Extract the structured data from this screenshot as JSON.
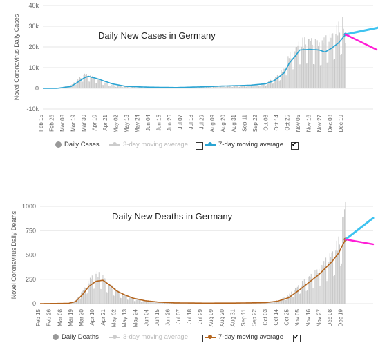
{
  "chart_data": [
    {
      "type": "bar",
      "title": "Daily New Cases in Germany",
      "ylabel": "Novel Coronavirus Daily Cases",
      "ylim": [
        -10000,
        40000
      ],
      "yticks": [
        "-10k",
        "0",
        "10k",
        "20k",
        "30k",
        "40k"
      ],
      "ytick_values": [
        -10000,
        0,
        10000,
        20000,
        30000,
        40000
      ],
      "x_tick_labels": [
        "Feb 15",
        "Feb 26",
        "Mar 08",
        "Mar 19",
        "Mar 30",
        "Apr 10",
        "Apr 21",
        "May 02",
        "May 13",
        "May 24",
        "Jun 04",
        "Jun 15",
        "Jun 26",
        "Jul 07",
        "Jul 18",
        "Jul 29",
        "Aug 09",
        "Aug 20",
        "Aug 31",
        "Sep 11",
        "Sep 22",
        "Oct 03",
        "Oct 14",
        "Oct 25",
        "Nov 05",
        "Nov 16",
        "Nov 27",
        "Dec 08",
        "Dec 19"
      ],
      "grid": true,
      "legend_position": "bottom",
      "series": [
        {
          "name": "Daily Cases",
          "kind": "bar",
          "color": "#c8c8c8",
          "x": [
            "Feb 15",
            "Mar 01",
            "Mar 15",
            "Mar 22",
            "Mar 29",
            "Apr 05",
            "Apr 12",
            "Apr 19",
            "Apr 26",
            "May 10",
            "Jun 01",
            "Jul 01",
            "Aug 01",
            "Aug 15",
            "Sep 01",
            "Sep 15",
            "Oct 01",
            "Oct 10",
            "Oct 20",
            "Oct 25",
            "Nov 01",
            "Nov 05",
            "Nov 15",
            "Nov 25",
            "Dec 01",
            "Dec 08",
            "Dec 15",
            "Dec 19",
            "Dec 22"
          ],
          "values": [
            0,
            100,
            1500,
            4000,
            6500,
            5500,
            4000,
            2500,
            1500,
            900,
            500,
            400,
            800,
            1100,
            1300,
            1600,
            2500,
            4500,
            9000,
            15000,
            18000,
            21000,
            22000,
            20000,
            22000,
            24000,
            28000,
            31000,
            20000
          ]
        },
        {
          "name": "7-day moving average",
          "kind": "line",
          "color": "#2aa4d3",
          "x": [
            "Feb 15",
            "Mar 01",
            "Mar 15",
            "Mar 22",
            "Mar 29",
            "Apr 02",
            "Apr 12",
            "Apr 26",
            "May 10",
            "Jun 01",
            "Jul 01",
            "Aug 01",
            "Aug 15",
            "Sep 01",
            "Sep 15",
            "Oct 01",
            "Oct 10",
            "Oct 20",
            "Oct 25",
            "Nov 01",
            "Nov 05",
            "Nov 15",
            "Nov 25",
            "Dec 01",
            "Dec 08",
            "Dec 15",
            "Dec 22"
          ],
          "values": [
            0,
            50,
            900,
            3000,
            5200,
            5800,
            4500,
            2200,
            1000,
            600,
            400,
            800,
            1100,
            1300,
            1500,
            2200,
            3800,
            7500,
            12000,
            16000,
            18500,
            18800,
            18500,
            17500,
            19500,
            22000,
            26000
          ]
        }
      ]
    },
    {
      "type": "bar",
      "title": "Daily New Deaths in Germany",
      "ylabel": "Novel Coronavirus Daily Deaths",
      "ylim": [
        0,
        1000
      ],
      "yticks": [
        "0",
        "250",
        "500",
        "750",
        "1000"
      ],
      "ytick_values": [
        0,
        250,
        500,
        750,
        1000
      ],
      "x_tick_labels": [
        "Feb 15",
        "Feb 26",
        "Mar 08",
        "Mar 19",
        "Mar 30",
        "Apr 10",
        "Apr 21",
        "May 02",
        "May 13",
        "May 24",
        "Jun 04",
        "Jun 15",
        "Jun 26",
        "Jul 07",
        "Jul 18",
        "Jul 29",
        "Aug 09",
        "Aug 20",
        "Aug 31",
        "Sep 11",
        "Sep 22",
        "Oct 03",
        "Oct 14",
        "Oct 25",
        "Nov 05",
        "Nov 16",
        "Nov 27",
        "Dec 08",
        "Dec 19"
      ],
      "grid": true,
      "legend_position": "bottom",
      "series": [
        {
          "name": "Daily Deaths",
          "kind": "bar",
          "color": "#c8c8c8",
          "x": [
            "Feb 15",
            "Mar 15",
            "Mar 22",
            "Mar 29",
            "Apr 05",
            "Apr 08",
            "Apr 12",
            "Apr 19",
            "Apr 26",
            "May 03",
            "May 10",
            "May 20",
            "Jun 01",
            "Jul 01",
            "Aug 01",
            "Sep 01",
            "Oct 01",
            "Oct 14",
            "Oct 25",
            "Nov 05",
            "Nov 15",
            "Nov 25",
            "Dec 01",
            "Dec 08",
            "Dec 15",
            "Dec 19",
            "Dec 22"
          ],
          "values": [
            0,
            5,
            30,
            120,
            220,
            260,
            300,
            260,
            180,
            130,
            90,
            50,
            25,
            8,
            5,
            6,
            10,
            30,
            80,
            180,
            260,
            320,
            400,
            480,
            600,
            800,
            950
          ]
        },
        {
          "name": "7-day moving average",
          "kind": "line",
          "color": "#b5651d",
          "x": [
            "Feb 15",
            "Mar 15",
            "Mar 22",
            "Mar 29",
            "Apr 05",
            "Apr 12",
            "Apr 19",
            "Apr 26",
            "May 03",
            "May 10",
            "May 20",
            "Jun 01",
            "Jun 15",
            "Jul 01",
            "Aug 01",
            "Sep 01",
            "Oct 01",
            "Oct 14",
            "Oct 25",
            "Nov 05",
            "Nov 15",
            "Nov 25",
            "Dec 01",
            "Dec 08",
            "Dec 15",
            "Dec 22"
          ],
          "values": [
            0,
            3,
            20,
            90,
            180,
            230,
            240,
            190,
            130,
            95,
            55,
            30,
            15,
            8,
            5,
            6,
            10,
            25,
            60,
            140,
            220,
            300,
            360,
            430,
            520,
            660
          ]
        }
      ]
    }
  ],
  "legends": {
    "top": {
      "bars": "Daily Cases",
      "ma3": "3-day moving average",
      "ma7": "7-day moving average"
    },
    "bottom": {
      "bars": "Daily Deaths",
      "ma3": "3-day moving average",
      "ma7": "7-day moving average"
    }
  },
  "colors": {
    "bars": "#c8c8c8",
    "cases_line": "#2aa4d3",
    "deaths_line": "#b5651d",
    "arrow_up": "#3ec3f0",
    "arrow_down": "#ff1ed6",
    "grid": "#e6e6e6"
  }
}
